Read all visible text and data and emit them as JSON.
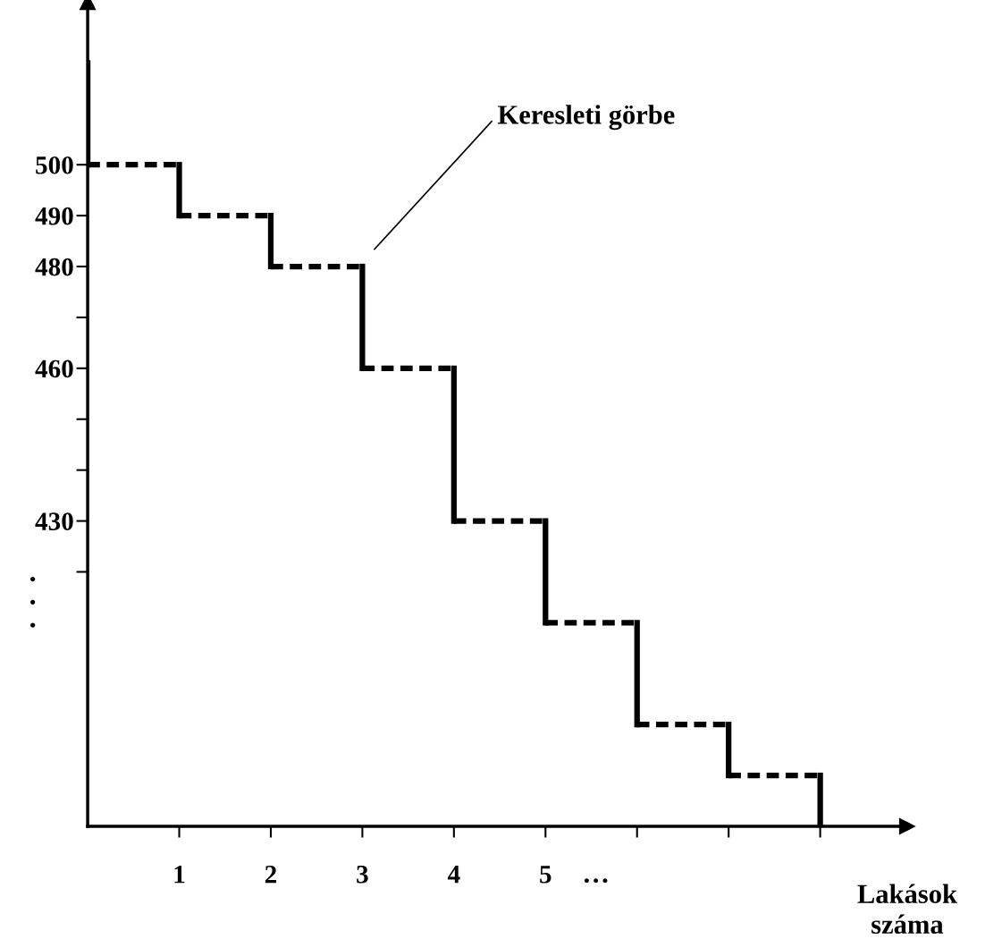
{
  "chart_data": {
    "type": "step",
    "xlabel": "Lakások\nszáma",
    "series": [
      {
        "color": "#000000",
        "x": [
          0,
          0,
          1,
          2,
          3,
          4,
          5,
          6,
          7,
          8
        ],
        "values": [
          520,
          500,
          490,
          480,
          460,
          430,
          410,
          390,
          380,
          370
        ]
      }
    ],
    "xlim": [
      0,
      8.95
    ],
    "ylim": [
      370,
      532
    ],
    "xticks": [
      1,
      2,
      3,
      4,
      5,
      {
        "value": 6,
        "label": null
      },
      {
        "value": 7,
        "label": null
      },
      {
        "value": 8,
        "label": null
      }
    ],
    "yticks": [
      500,
      490,
      480,
      {
        "value": 470,
        "label": null
      },
      460,
      {
        "value": 450,
        "label": null
      },
      {
        "value": 440,
        "label": null
      },
      430,
      {
        "value": 420,
        "label": null
      }
    ],
    "annotations": [
      "Keresleti görbe",
      "…",
      "•\n•\n•"
    ],
    "grid": false
  }
}
